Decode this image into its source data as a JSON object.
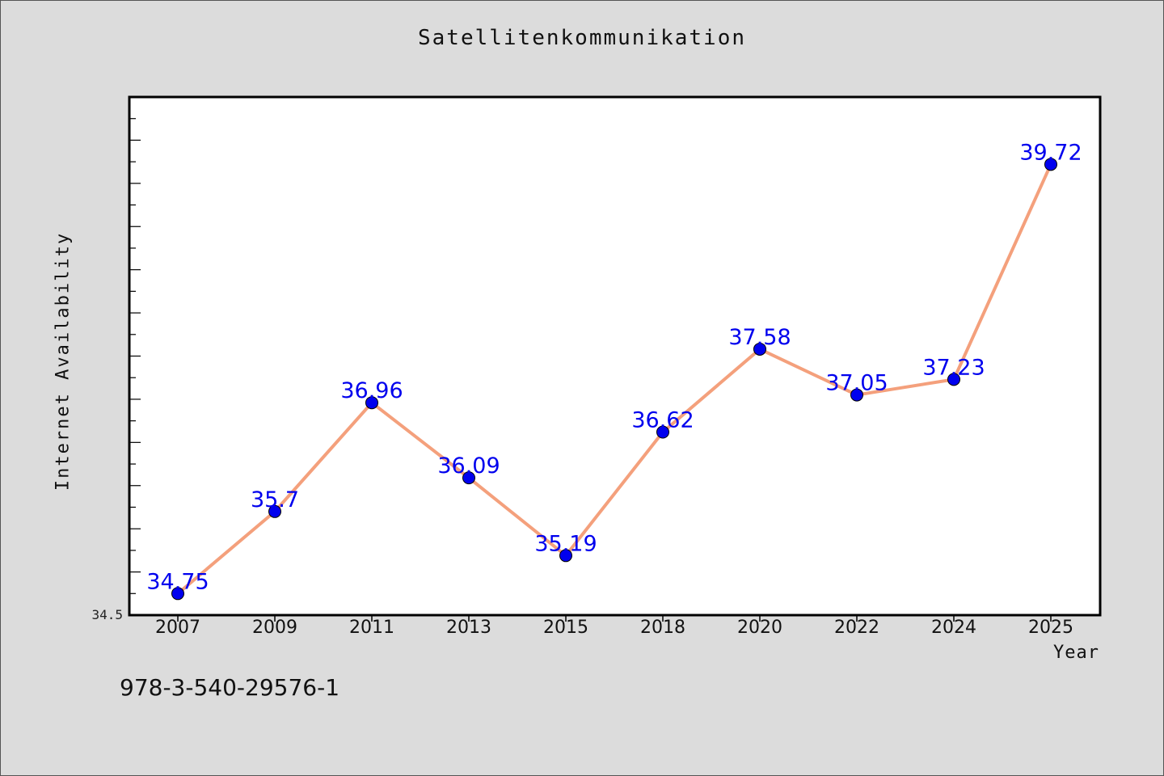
{
  "chart_data": {
    "type": "line",
    "title": "Satellitenkommunikation",
    "xlabel": "Year",
    "ylabel": "Internet Availability",
    "categories": [
      "2007",
      "2009",
      "2011",
      "2013",
      "2015",
      "2018",
      "2020",
      "2022",
      "2024",
      "2025"
    ],
    "series": [
      {
        "values": [
          34.75,
          35.7,
          36.96,
          36.09,
          35.19,
          36.62,
          37.58,
          37.05,
          37.23,
          39.72
        ],
        "data_labels": [
          "34.75",
          "35.7",
          "36.96",
          "36.09",
          "35.19",
          "36.62",
          "37.58",
          "37.05",
          "37.23",
          "39.72"
        ],
        "line_color": "#f4a07c",
        "marker_color": "#0000ee",
        "label_color": "#0000ee"
      }
    ],
    "ylim": [
      34.5,
      40.5
    ],
    "y_tick_label": "34.5",
    "grid": false,
    "legend": "none"
  },
  "footer": {
    "text": "978-3-540-29576-1"
  }
}
